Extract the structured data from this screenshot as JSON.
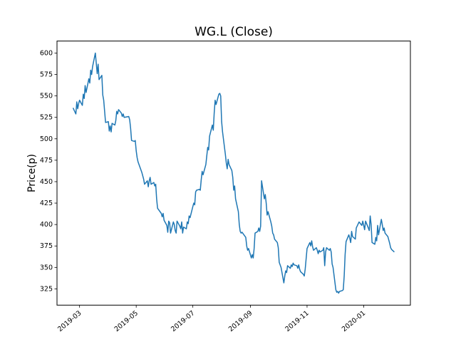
{
  "figure": {
    "background": "#ffffff"
  },
  "chart_data": {
    "type": "line",
    "title": "WG.L (Close)",
    "xlabel": "",
    "ylabel": "Price(p)",
    "legend": null,
    "grid": false,
    "line_color": "#1f77b4",
    "axis_color": "#000000",
    "ylim": [
      306,
      614
    ],
    "y_ticks": [
      325,
      350,
      375,
      400,
      425,
      450,
      475,
      500,
      525,
      550,
      575,
      600
    ],
    "x_ticks": [
      "2019-03",
      "2019-05",
      "2019-07",
      "2019-09",
      "2019-11",
      "2020-01"
    ],
    "x_margin_frac": 0.05,
    "series": [
      {
        "name": "Close",
        "points": [
          [
            "2019-02-22",
            536
          ],
          [
            "2019-02-25",
            529
          ],
          [
            "2019-02-26",
            543
          ],
          [
            "2019-02-27",
            535
          ],
          [
            "2019-02-28",
            541
          ],
          [
            "2019-03-01",
            545
          ],
          [
            "2019-03-04",
            539
          ],
          [
            "2019-03-05",
            552
          ],
          [
            "2019-03-06",
            547
          ],
          [
            "2019-03-07",
            562
          ],
          [
            "2019-03-08",
            554
          ],
          [
            "2019-03-11",
            570
          ],
          [
            "2019-03-12",
            565
          ],
          [
            "2019-03-13",
            580
          ],
          [
            "2019-03-14",
            575
          ],
          [
            "2019-03-15",
            584
          ],
          [
            "2019-03-18",
            600
          ],
          [
            "2019-03-19",
            588
          ],
          [
            "2019-03-20",
            576
          ],
          [
            "2019-03-21",
            587
          ],
          [
            "2019-03-22",
            569
          ],
          [
            "2019-03-25",
            574
          ],
          [
            "2019-03-26",
            551
          ],
          [
            "2019-03-27",
            545
          ],
          [
            "2019-03-28",
            532
          ],
          [
            "2019-03-29",
            519
          ],
          [
            "2019-04-01",
            520
          ],
          [
            "2019-04-02",
            509
          ],
          [
            "2019-04-03",
            515
          ],
          [
            "2019-04-04",
            508
          ],
          [
            "2019-04-05",
            518
          ],
          [
            "2019-04-08",
            516
          ],
          [
            "2019-04-09",
            521
          ],
          [
            "2019-04-10",
            532
          ],
          [
            "2019-04-11",
            529
          ],
          [
            "2019-04-12",
            534
          ],
          [
            "2019-04-15",
            530
          ],
          [
            "2019-04-16",
            526
          ],
          [
            "2019-04-17",
            529
          ],
          [
            "2019-04-18",
            525
          ],
          [
            "2019-04-23",
            526
          ],
          [
            "2019-04-24",
            522
          ],
          [
            "2019-04-25",
            512
          ],
          [
            "2019-04-26",
            498
          ],
          [
            "2019-04-29",
            497
          ],
          [
            "2019-04-30",
            498
          ],
          [
            "2019-05-01",
            486
          ],
          [
            "2019-05-02",
            478
          ],
          [
            "2019-05-03",
            473
          ],
          [
            "2019-05-07",
            461
          ],
          [
            "2019-05-08",
            457
          ],
          [
            "2019-05-09",
            453
          ],
          [
            "2019-05-10",
            447
          ],
          [
            "2019-05-13",
            451
          ],
          [
            "2019-05-14",
            444
          ],
          [
            "2019-05-15",
            451
          ],
          [
            "2019-05-16",
            455
          ],
          [
            "2019-05-17",
            447
          ],
          [
            "2019-05-20",
            449
          ],
          [
            "2019-05-21",
            445
          ],
          [
            "2019-05-22",
            447
          ],
          [
            "2019-05-23",
            430
          ],
          [
            "2019-05-24",
            419
          ],
          [
            "2019-05-28",
            413
          ],
          [
            "2019-05-29",
            409
          ],
          [
            "2019-05-30",
            413
          ],
          [
            "2019-05-31",
            405
          ],
          [
            "2019-06-03",
            399
          ],
          [
            "2019-06-04",
            391
          ],
          [
            "2019-06-05",
            404
          ],
          [
            "2019-06-06",
            402
          ],
          [
            "2019-06-07",
            390
          ],
          [
            "2019-06-10",
            403
          ],
          [
            "2019-06-11",
            400
          ],
          [
            "2019-06-12",
            393
          ],
          [
            "2019-06-13",
            390
          ],
          [
            "2019-06-14",
            404
          ],
          [
            "2019-06-17",
            398
          ],
          [
            "2019-06-18",
            395
          ],
          [
            "2019-06-19",
            403
          ],
          [
            "2019-06-20",
            390
          ],
          [
            "2019-06-21",
            397
          ],
          [
            "2019-06-24",
            395
          ],
          [
            "2019-06-25",
            403
          ],
          [
            "2019-06-26",
            401
          ],
          [
            "2019-06-27",
            410
          ],
          [
            "2019-06-28",
            408
          ],
          [
            "2019-07-01",
            421
          ],
          [
            "2019-07-02",
            425
          ],
          [
            "2019-07-03",
            423
          ],
          [
            "2019-07-04",
            438
          ],
          [
            "2019-07-05",
            440
          ],
          [
            "2019-07-08",
            441
          ],
          [
            "2019-07-09",
            440
          ],
          [
            "2019-07-10",
            452
          ],
          [
            "2019-07-11",
            462
          ],
          [
            "2019-07-12",
            458
          ],
          [
            "2019-07-15",
            470
          ],
          [
            "2019-07-16",
            480
          ],
          [
            "2019-07-17",
            490
          ],
          [
            "2019-07-18",
            487
          ],
          [
            "2019-07-19",
            503
          ],
          [
            "2019-07-22",
            516
          ],
          [
            "2019-07-23",
            510
          ],
          [
            "2019-07-24",
            530
          ],
          [
            "2019-07-25",
            545
          ],
          [
            "2019-07-26",
            540
          ],
          [
            "2019-07-29",
            552
          ],
          [
            "2019-07-30",
            553
          ],
          [
            "2019-07-31",
            550
          ],
          [
            "2019-08-01",
            520
          ],
          [
            "2019-08-02",
            508
          ],
          [
            "2019-08-05",
            482
          ],
          [
            "2019-08-06",
            472
          ],
          [
            "2019-08-07",
            465
          ],
          [
            "2019-08-08",
            476
          ],
          [
            "2019-08-09",
            470
          ],
          [
            "2019-08-12",
            463
          ],
          [
            "2019-08-13",
            455
          ],
          [
            "2019-08-14",
            440
          ],
          [
            "2019-08-15",
            445
          ],
          [
            "2019-08-16",
            430
          ],
          [
            "2019-08-19",
            415
          ],
          [
            "2019-08-20",
            400
          ],
          [
            "2019-08-21",
            392
          ],
          [
            "2019-08-22",
            390
          ],
          [
            "2019-08-23",
            391
          ],
          [
            "2019-08-27",
            385
          ],
          [
            "2019-08-28",
            375
          ],
          [
            "2019-08-29",
            370
          ],
          [
            "2019-08-30",
            372
          ],
          [
            "2019-09-02",
            361
          ],
          [
            "2019-09-03",
            365
          ],
          [
            "2019-09-04",
            361
          ],
          [
            "2019-09-05",
            372
          ],
          [
            "2019-09-06",
            390
          ],
          [
            "2019-09-09",
            392
          ],
          [
            "2019-09-10",
            396
          ],
          [
            "2019-09-11",
            392
          ],
          [
            "2019-09-12",
            398
          ],
          [
            "2019-09-13",
            451
          ],
          [
            "2019-09-16",
            430
          ],
          [
            "2019-09-17",
            435
          ],
          [
            "2019-09-18",
            425
          ],
          [
            "2019-09-19",
            411
          ],
          [
            "2019-09-20",
            415
          ],
          [
            "2019-09-23",
            403
          ],
          [
            "2019-09-24",
            398
          ],
          [
            "2019-09-25",
            390
          ],
          [
            "2019-09-26",
            388
          ],
          [
            "2019-09-27",
            383
          ],
          [
            "2019-09-30",
            379
          ],
          [
            "2019-10-01",
            373
          ],
          [
            "2019-10-02",
            356
          ],
          [
            "2019-10-03",
            353
          ],
          [
            "2019-10-04",
            350
          ],
          [
            "2019-10-07",
            332
          ],
          [
            "2019-10-08",
            340
          ],
          [
            "2019-10-09",
            346
          ],
          [
            "2019-10-10",
            344
          ],
          [
            "2019-10-11",
            352
          ],
          [
            "2019-10-14",
            349
          ],
          [
            "2019-10-15",
            353
          ],
          [
            "2019-10-16",
            351
          ],
          [
            "2019-10-17",
            355
          ],
          [
            "2019-10-18",
            353
          ],
          [
            "2019-10-21",
            352
          ],
          [
            "2019-10-22",
            349
          ],
          [
            "2019-10-23",
            353
          ],
          [
            "2019-10-24",
            348
          ],
          [
            "2019-10-25",
            345
          ],
          [
            "2019-10-28",
            342
          ],
          [
            "2019-10-29",
            340
          ],
          [
            "2019-10-30",
            348
          ],
          [
            "2019-10-31",
            360
          ],
          [
            "2019-11-01",
            372
          ],
          [
            "2019-11-04",
            379
          ],
          [
            "2019-11-05",
            375
          ],
          [
            "2019-11-06",
            381
          ],
          [
            "2019-11-07",
            374
          ],
          [
            "2019-11-08",
            370
          ],
          [
            "2019-11-11",
            373
          ],
          [
            "2019-11-12",
            370
          ],
          [
            "2019-11-13",
            366
          ],
          [
            "2019-11-14",
            370
          ],
          [
            "2019-11-15",
            368
          ],
          [
            "2019-11-18",
            370
          ],
          [
            "2019-11-19",
            373
          ],
          [
            "2019-11-20",
            352
          ],
          [
            "2019-11-21",
            368
          ],
          [
            "2019-11-22",
            373
          ],
          [
            "2019-11-25",
            370
          ],
          [
            "2019-11-26",
            372
          ],
          [
            "2019-11-27",
            368
          ],
          [
            "2019-11-28",
            354
          ],
          [
            "2019-11-29",
            350
          ],
          [
            "2019-12-02",
            324
          ],
          [
            "2019-12-03",
            321
          ],
          [
            "2019-12-04",
            322
          ],
          [
            "2019-12-05",
            320
          ],
          [
            "2019-12-06",
            322
          ],
          [
            "2019-12-09",
            323
          ],
          [
            "2019-12-10",
            324
          ],
          [
            "2019-12-11",
            340
          ],
          [
            "2019-12-12",
            365
          ],
          [
            "2019-12-13",
            380
          ],
          [
            "2019-12-16",
            388
          ],
          [
            "2019-12-17",
            384
          ],
          [
            "2019-12-18",
            379
          ],
          [
            "2019-12-19",
            392
          ],
          [
            "2019-12-20",
            386
          ],
          [
            "2019-12-23",
            383
          ],
          [
            "2019-12-24",
            396
          ],
          [
            "2019-12-27",
            403
          ],
          [
            "2019-12-30",
            399
          ],
          [
            "2019-12-31",
            404
          ],
          [
            "2020-01-02",
            394
          ],
          [
            "2020-01-03",
            404
          ],
          [
            "2020-01-06",
            396
          ],
          [
            "2020-01-07",
            393
          ],
          [
            "2020-01-08",
            410
          ],
          [
            "2020-01-09",
            400
          ],
          [
            "2020-01-10",
            379
          ],
          [
            "2020-01-13",
            377
          ],
          [
            "2020-01-14",
            385
          ],
          [
            "2020-01-15",
            381
          ],
          [
            "2020-01-16",
            399
          ],
          [
            "2020-01-17",
            388
          ],
          [
            "2020-01-20",
            406
          ],
          [
            "2020-01-21",
            400
          ],
          [
            "2020-01-22",
            393
          ],
          [
            "2020-01-23",
            396
          ],
          [
            "2020-01-24",
            390
          ],
          [
            "2020-01-27",
            386
          ],
          [
            "2020-01-28",
            382
          ],
          [
            "2020-01-29",
            378
          ],
          [
            "2020-01-30",
            373
          ],
          [
            "2020-01-31",
            371
          ],
          [
            "2020-02-03",
            368
          ]
        ]
      }
    ]
  }
}
